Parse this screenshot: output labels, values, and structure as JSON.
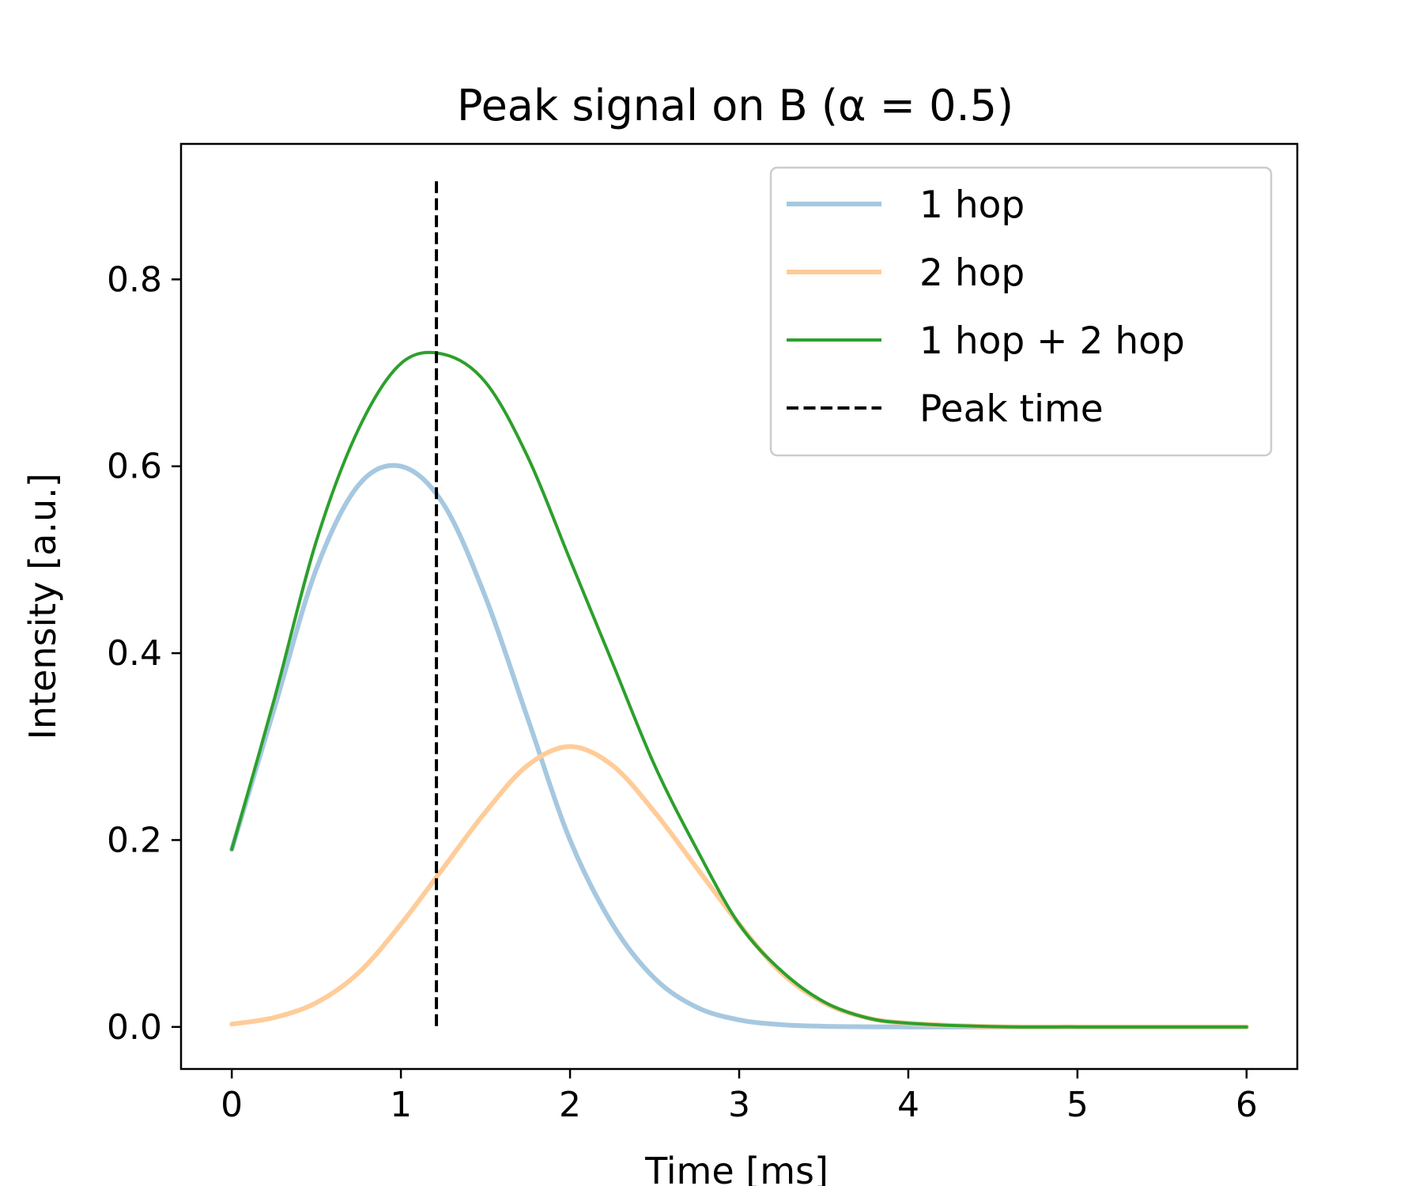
{
  "chart_data": {
    "type": "line",
    "title": "Peak signal on B (α = 0.5)",
    "xlabel": "Time [ms]",
    "ylabel": "Intensity [a.u.]",
    "xlim": [
      -0.3,
      6.3
    ],
    "ylim": [
      -0.045,
      0.945
    ],
    "x_ticks": [
      0,
      1,
      2,
      3,
      4,
      5,
      6
    ],
    "y_ticks": [
      0.0,
      0.2,
      0.4,
      0.6,
      0.8
    ],
    "x_tick_labels": [
      "0",
      "1",
      "2",
      "3",
      "4",
      "5",
      "6"
    ],
    "y_tick_labels": [
      "0.0",
      "0.2",
      "0.4",
      "0.6",
      "0.8"
    ],
    "grid": false,
    "legend": {
      "position": "upper-right",
      "entries": [
        "1 hop",
        "2 hop",
        "1 hop + 2 hop",
        "Peak time"
      ]
    },
    "x": [
      0.0,
      0.25,
      0.5,
      0.75,
      1.0,
      1.25,
      1.5,
      1.75,
      2.0,
      2.25,
      2.5,
      2.75,
      3.0,
      3.25,
      3.5,
      3.75,
      4.0,
      4.5,
      5.0,
      5.5,
      6.0
    ],
    "series": [
      {
        "name": "1 hop",
        "color": "#a6c8e0",
        "linestyle": "solid",
        "values": [
          0.19,
          0.34,
          0.49,
          0.58,
          0.6,
          0.56,
          0.46,
          0.33,
          0.2,
          0.11,
          0.052,
          0.021,
          0.0075,
          0.0024,
          0.0007,
          0.0002,
          0.0,
          0.0,
          0.0,
          0.0,
          0.0
        ]
      },
      {
        "name": "2 hop",
        "color": "#ffcc99",
        "linestyle": "solid",
        "values": [
          0.003,
          0.01,
          0.026,
          0.058,
          0.11,
          0.17,
          0.23,
          0.28,
          0.3,
          0.28,
          0.23,
          0.17,
          0.11,
          0.058,
          0.026,
          0.01,
          0.004,
          0.0004,
          0.0,
          0.0,
          0.0
        ]
      },
      {
        "name": "1 hop + 2 hop",
        "color": "#2ca02c",
        "linestyle": "solid",
        "values": [
          0.19,
          0.35,
          0.52,
          0.64,
          0.71,
          0.72,
          0.69,
          0.61,
          0.5,
          0.39,
          0.28,
          0.19,
          0.11,
          0.06,
          0.027,
          0.01,
          0.004,
          0.0004,
          0.0,
          0.0,
          0.0
        ]
      }
    ],
    "vlines": [
      {
        "name": "Peak time",
        "x": 1.21,
        "ymin": 0.0,
        "ymax": 0.905,
        "color": "#000000",
        "linestyle": "dashed"
      }
    ]
  }
}
